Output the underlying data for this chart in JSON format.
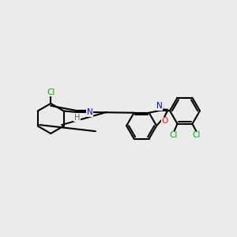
{
  "background_color": "#ebebeb",
  "bond_color": "#000000",
  "bond_width": 1.5,
  "atom_colors": {
    "C": "#000000",
    "N": "#0000ff",
    "O": "#ff0000",
    "Cl": "#00aa00",
    "H": "#444444"
  },
  "font_size": 7.5
}
